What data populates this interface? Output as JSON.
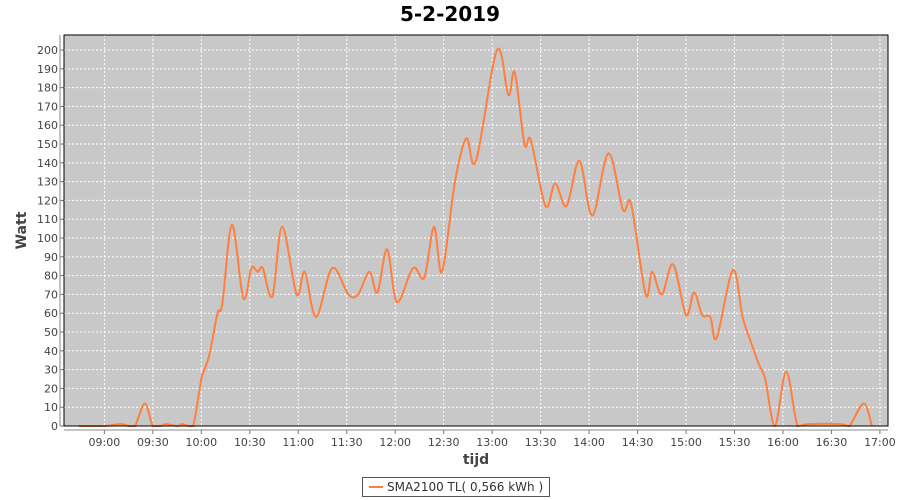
{
  "chart_data": {
    "type": "line",
    "title": "5-2-2019",
    "xlabel": "tijd",
    "ylabel": "Watt",
    "ylim": [
      0,
      208
    ],
    "yticks": [
      0,
      10,
      20,
      30,
      40,
      50,
      60,
      70,
      80,
      90,
      100,
      110,
      120,
      130,
      140,
      150,
      160,
      170,
      180,
      190,
      200
    ],
    "xlim": [
      "08:35",
      "17:05"
    ],
    "xticks": [
      "09:00",
      "09:30",
      "10:00",
      "10:30",
      "11:00",
      "11:30",
      "12:00",
      "12:30",
      "13:00",
      "13:30",
      "14:00",
      "14:30",
      "15:00",
      "15:30",
      "16:00",
      "16:30",
      "17:00"
    ],
    "grid": true,
    "background": "#c8c8c8",
    "legend_position": "bottom",
    "series": [
      {
        "name": "SMA2100 TL( 0,566 kWh )",
        "color": "#ff7f3f",
        "x": [
          "08:44",
          "09:00",
          "09:10",
          "09:15",
          "09:19",
          "09:25",
          "09:30",
          "09:35",
          "09:38",
          "09:45",
          "09:48",
          "09:52",
          "09:55",
          "10:00",
          "10:01",
          "10:05",
          "10:10",
          "10:13",
          "10:19",
          "10:26",
          "10:31",
          "10:35",
          "10:38",
          "10:44",
          "10:50",
          "10:59",
          "11:04",
          "11:11",
          "11:21",
          "11:31",
          "11:37",
          "11:44",
          "11:49",
          "11:55",
          "12:01",
          "12:11",
          "12:18",
          "12:24",
          "12:29",
          "12:37",
          "12:44",
          "12:50",
          "13:03",
          "13:10",
          "13:14",
          "13:20",
          "13:24",
          "13:33",
          "13:39",
          "13:46",
          "13:54",
          "14:02",
          "14:12",
          "14:21",
          "14:26",
          "14:35",
          "14:39",
          "14:45",
          "14:52",
          "15:00",
          "15:05",
          "15:10",
          "15:15",
          "15:19",
          "15:29",
          "15:35",
          "15:40",
          "15:45",
          "15:49",
          "15:55",
          "16:02",
          "16:09",
          "16:16",
          "16:35",
          "16:41",
          "16:50",
          "16:55"
        ],
        "y": [
          0,
          0,
          1,
          0,
          0,
          12,
          0,
          0,
          1,
          0,
          1,
          0,
          0,
          25,
          28,
          38,
          60,
          65,
          107,
          68,
          84,
          82,
          84,
          69,
          106,
          70,
          82,
          58,
          84,
          70,
          70,
          82,
          71,
          94,
          66,
          84,
          79,
          106,
          82,
          130,
          153,
          141,
          200,
          176,
          188,
          150,
          152,
          117,
          129,
          117,
          141,
          112,
          145,
          115,
          118,
          70,
          82,
          70,
          86,
          59,
          71,
          59,
          58,
          47,
          83,
          58,
          45,
          33,
          25,
          0,
          29,
          0,
          1,
          1,
          0,
          12,
          0
        ]
      }
    ]
  }
}
